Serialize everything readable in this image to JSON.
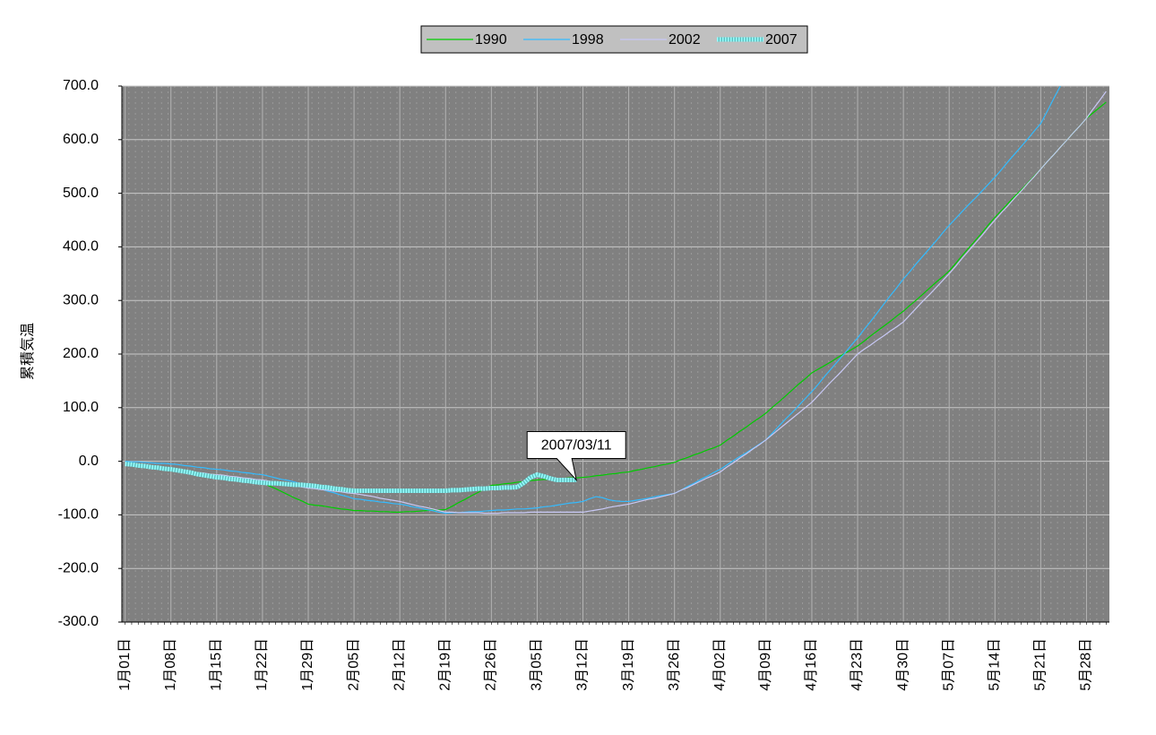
{
  "chart_data": {
    "type": "line",
    "y_label": "累積気温",
    "ylim": [
      -300,
      700
    ],
    "yticks": [
      {
        "value": -300,
        "label": "-300.0"
      },
      {
        "value": -200,
        "label": "-200.0"
      },
      {
        "value": -100,
        "label": "-100.0"
      },
      {
        "value": 0,
        "label": "0.0"
      },
      {
        "value": 100,
        "label": "100.0"
      },
      {
        "value": 200,
        "label": "200.0"
      },
      {
        "value": 300,
        "label": "300.0"
      },
      {
        "value": 400,
        "label": "400.0"
      },
      {
        "value": 500,
        "label": "500.0"
      },
      {
        "value": 600,
        "label": "600.0"
      },
      {
        "value": 700,
        "label": "700.0"
      }
    ],
    "negative_tick_color": "#ff0000",
    "grid": true,
    "plot_background": "#808080",
    "legend": "top",
    "annotations": [
      {
        "text": "2007/03/11",
        "series": 3,
        "index": 69
      }
    ],
    "categories": [
      "1月01日",
      null,
      null,
      null,
      null,
      null,
      null,
      "1月08日",
      null,
      null,
      null,
      null,
      null,
      null,
      "1月15日",
      null,
      null,
      null,
      null,
      null,
      null,
      "1月22日",
      null,
      null,
      null,
      null,
      null,
      null,
      "1月29日",
      null,
      null,
      null,
      null,
      null,
      null,
      "2月05日",
      null,
      null,
      null,
      null,
      null,
      null,
      "2月12日",
      null,
      null,
      null,
      null,
      null,
      null,
      "2月19日",
      null,
      null,
      null,
      null,
      null,
      null,
      "2月26日",
      null,
      null,
      null,
      null,
      null,
      null,
      "3月05日",
      null,
      null,
      null,
      null,
      null,
      null,
      "3月12日",
      null,
      null,
      null,
      null,
      null,
      null,
      "3月19日",
      null,
      null,
      null,
      null,
      null,
      null,
      "3月26日",
      null,
      null,
      null,
      null,
      null,
      null,
      "4月02日",
      null,
      null,
      null,
      null,
      null,
      null,
      "4月09日",
      null,
      null,
      null,
      null,
      null,
      null,
      "4月16日",
      null,
      null,
      null,
      null,
      null,
      null,
      "4月23日",
      null,
      null,
      null,
      null,
      null,
      null,
      "4月30日",
      null,
      null,
      null,
      null,
      null,
      null,
      "5月07日",
      null,
      null,
      null,
      null,
      null,
      null,
      "5月14日",
      null,
      null,
      null,
      null,
      null,
      null,
      "5月21日",
      null,
      null,
      null,
      null,
      null,
      null,
      "5月28日",
      null,
      null,
      null
    ],
    "series": [
      {
        "name": "1990",
        "color": "#00cc00",
        "style": "thin",
        "values": [
          -3,
          -5,
          -7,
          -9,
          -12,
          -14,
          -16,
          -18,
          -19,
          -20,
          -21,
          -22,
          -23,
          -24,
          -25,
          -27,
          -29,
          -31,
          -34,
          -36,
          -38,
          -40,
          -46,
          -51,
          -57,
          -63,
          -69,
          -74,
          -80,
          -82,
          -83,
          -85,
          -87,
          -89,
          -90,
          -92,
          -92,
          -93,
          -93,
          -94,
          -94,
          -95,
          -95,
          -94,
          -94,
          -93,
          -92,
          -91,
          -91,
          -90,
          -84,
          -77,
          -71,
          -64,
          -58,
          -51,
          -45,
          -44,
          -42,
          -41,
          -39,
          -38,
          -36,
          -35,
          -34,
          -34,
          -33,
          -32,
          -31,
          -31,
          -30,
          -29,
          -27,
          -26,
          -24,
          -23,
          -21,
          -20,
          -17,
          -15,
          -12,
          -10,
          -7,
          -5,
          -2,
          3,
          7,
          12,
          16,
          21,
          25,
          30,
          39,
          47,
          56,
          64,
          73,
          81,
          90,
          101,
          111,
          122,
          133,
          144,
          154,
          165,
          172,
          179,
          186,
          194,
          201,
          208,
          215,
          224,
          234,
          243,
          252,
          261,
          271,
          280,
          291,
          301,
          312,
          323,
          334,
          344,
          355,
          369,
          384,
          398,
          412,
          426,
          441,
          455,
          468,
          481,
          494,
          506,
          519,
          532,
          545,
          559,
          572,
          586,
          599,
          613,
          626,
          640,
          650,
          660,
          670
        ]
      },
      {
        "name": "1998",
        "color": "#33bbff",
        "style": "thin",
        "values": [
          0,
          -1,
          -1,
          -2,
          -3,
          -4,
          -4,
          -5,
          -6,
          -8,
          -9,
          -11,
          -12,
          -14,
          -15,
          -16,
          -18,
          -19,
          -21,
          -22,
          -24,
          -25,
          -28,
          -31,
          -34,
          -36,
          -39,
          -42,
          -45,
          -49,
          -52,
          -56,
          -59,
          -63,
          -66,
          -70,
          -71,
          -73,
          -74,
          -76,
          -77,
          -79,
          -80,
          -82,
          -85,
          -87,
          -90,
          -92,
          -95,
          -97,
          -96,
          -96,
          -95,
          -94,
          -94,
          -93,
          -92,
          -91,
          -91,
          -90,
          -89,
          -89,
          -88,
          -87,
          -85,
          -84,
          -82,
          -80,
          -78,
          -77,
          -75,
          -70,
          -66,
          -68,
          -72,
          -74,
          -75,
          -75,
          -73,
          -71,
          -69,
          -66,
          -64,
          -62,
          -60,
          -54,
          -47,
          -41,
          -34,
          -28,
          -21,
          -15,
          -7,
          1,
          9,
          16,
          24,
          32,
          40,
          53,
          66,
          79,
          91,
          104,
          117,
          130,
          144,
          159,
          173,
          187,
          201,
          216,
          230,
          246,
          261,
          277,
          293,
          309,
          324,
          340,
          354,
          369,
          383,
          397,
          411,
          426,
          440,
          453,
          466,
          479,
          491,
          504,
          517,
          530,
          544,
          559,
          573,
          587,
          601,
          616,
          630,
          653,
          677,
          700,
          null,
          null,
          null,
          null,
          null,
          null,
          null
        ]
      },
      {
        "name": "2002",
        "color": "#c8c8f5",
        "style": "thin",
        "values": [
          -3,
          -5,
          -6,
          -8,
          -10,
          -12,
          -13,
          -15,
          -16,
          -18,
          -19,
          -21,
          -22,
          -24,
          -25,
          -26,
          -28,
          -29,
          -31,
          -32,
          -34,
          -35,
          -37,
          -39,
          -41,
          -44,
          -46,
          -48,
          -50,
          -51,
          -53,
          -54,
          -56,
          -57,
          -59,
          -60,
          -62,
          -64,
          -66,
          -69,
          -71,
          -73,
          -75,
          -78,
          -81,
          -84,
          -86,
          -89,
          -92,
          -95,
          -95,
          -96,
          -96,
          -96,
          -96,
          -97,
          -97,
          -97,
          -96,
          -96,
          -96,
          -96,
          -95,
          -95,
          -95,
          -95,
          -95,
          -95,
          -95,
          -95,
          -95,
          -93,
          -91,
          -89,
          -86,
          -84,
          -82,
          -80,
          -77,
          -74,
          -71,
          -69,
          -66,
          -63,
          -60,
          -54,
          -49,
          -43,
          -37,
          -31,
          -26,
          -20,
          -11,
          -3,
          6,
          14,
          23,
          31,
          40,
          50,
          60,
          70,
          80,
          90,
          100,
          110,
          123,
          136,
          149,
          161,
          174,
          187,
          200,
          209,
          217,
          226,
          234,
          243,
          251,
          260,
          273,
          286,
          299,
          311,
          324,
          337,
          350,
          364,
          379,
          393,
          407,
          421,
          436,
          450,
          464,
          477,
          491,
          504,
          518,
          531,
          545,
          559,
          572,
          586,
          599,
          613,
          626,
          640,
          657,
          673,
          690
        ]
      },
      {
        "name": "2007",
        "color": "#99ffff",
        "style": "textured",
        "values": [
          -5,
          -6,
          -8,
          -9,
          -11,
          -12,
          -14,
          -15,
          -17,
          -19,
          -21,
          -24,
          -26,
          -28,
          -30,
          -31,
          -33,
          -34,
          -36,
          -37,
          -39,
          -40,
          -41,
          -41,
          -42,
          -43,
          -44,
          -44,
          -45,
          -46,
          -48,
          -49,
          -51,
          -52,
          -54,
          -55,
          -55,
          -55,
          -55,
          -55,
          -55,
          -55,
          -55,
          -55,
          -55,
          -55,
          -55,
          -55,
          -55,
          -55,
          -54,
          -54,
          -53,
          -52,
          -51,
          -51,
          -50,
          -50,
          -49,
          -49,
          -48,
          -40,
          -30,
          -25,
          -28,
          -32,
          -35,
          -35,
          -35,
          -35,
          null,
          null,
          null,
          null,
          null,
          null,
          null,
          null,
          null,
          null,
          null,
          null,
          null,
          null,
          null,
          null,
          null,
          null,
          null,
          null,
          null,
          null,
          null,
          null,
          null,
          null,
          null,
          null,
          null,
          null,
          null,
          null,
          null,
          null,
          null,
          null,
          null,
          null,
          null,
          null,
          null,
          null,
          null,
          null,
          null,
          null,
          null,
          null,
          null,
          null,
          null,
          null,
          null,
          null,
          null,
          null,
          null,
          null,
          null,
          null,
          null,
          null,
          null,
          null,
          null,
          null,
          null,
          null,
          null,
          null,
          null,
          null,
          null,
          null,
          null,
          null,
          null,
          null,
          null,
          null,
          null
        ]
      }
    ]
  }
}
